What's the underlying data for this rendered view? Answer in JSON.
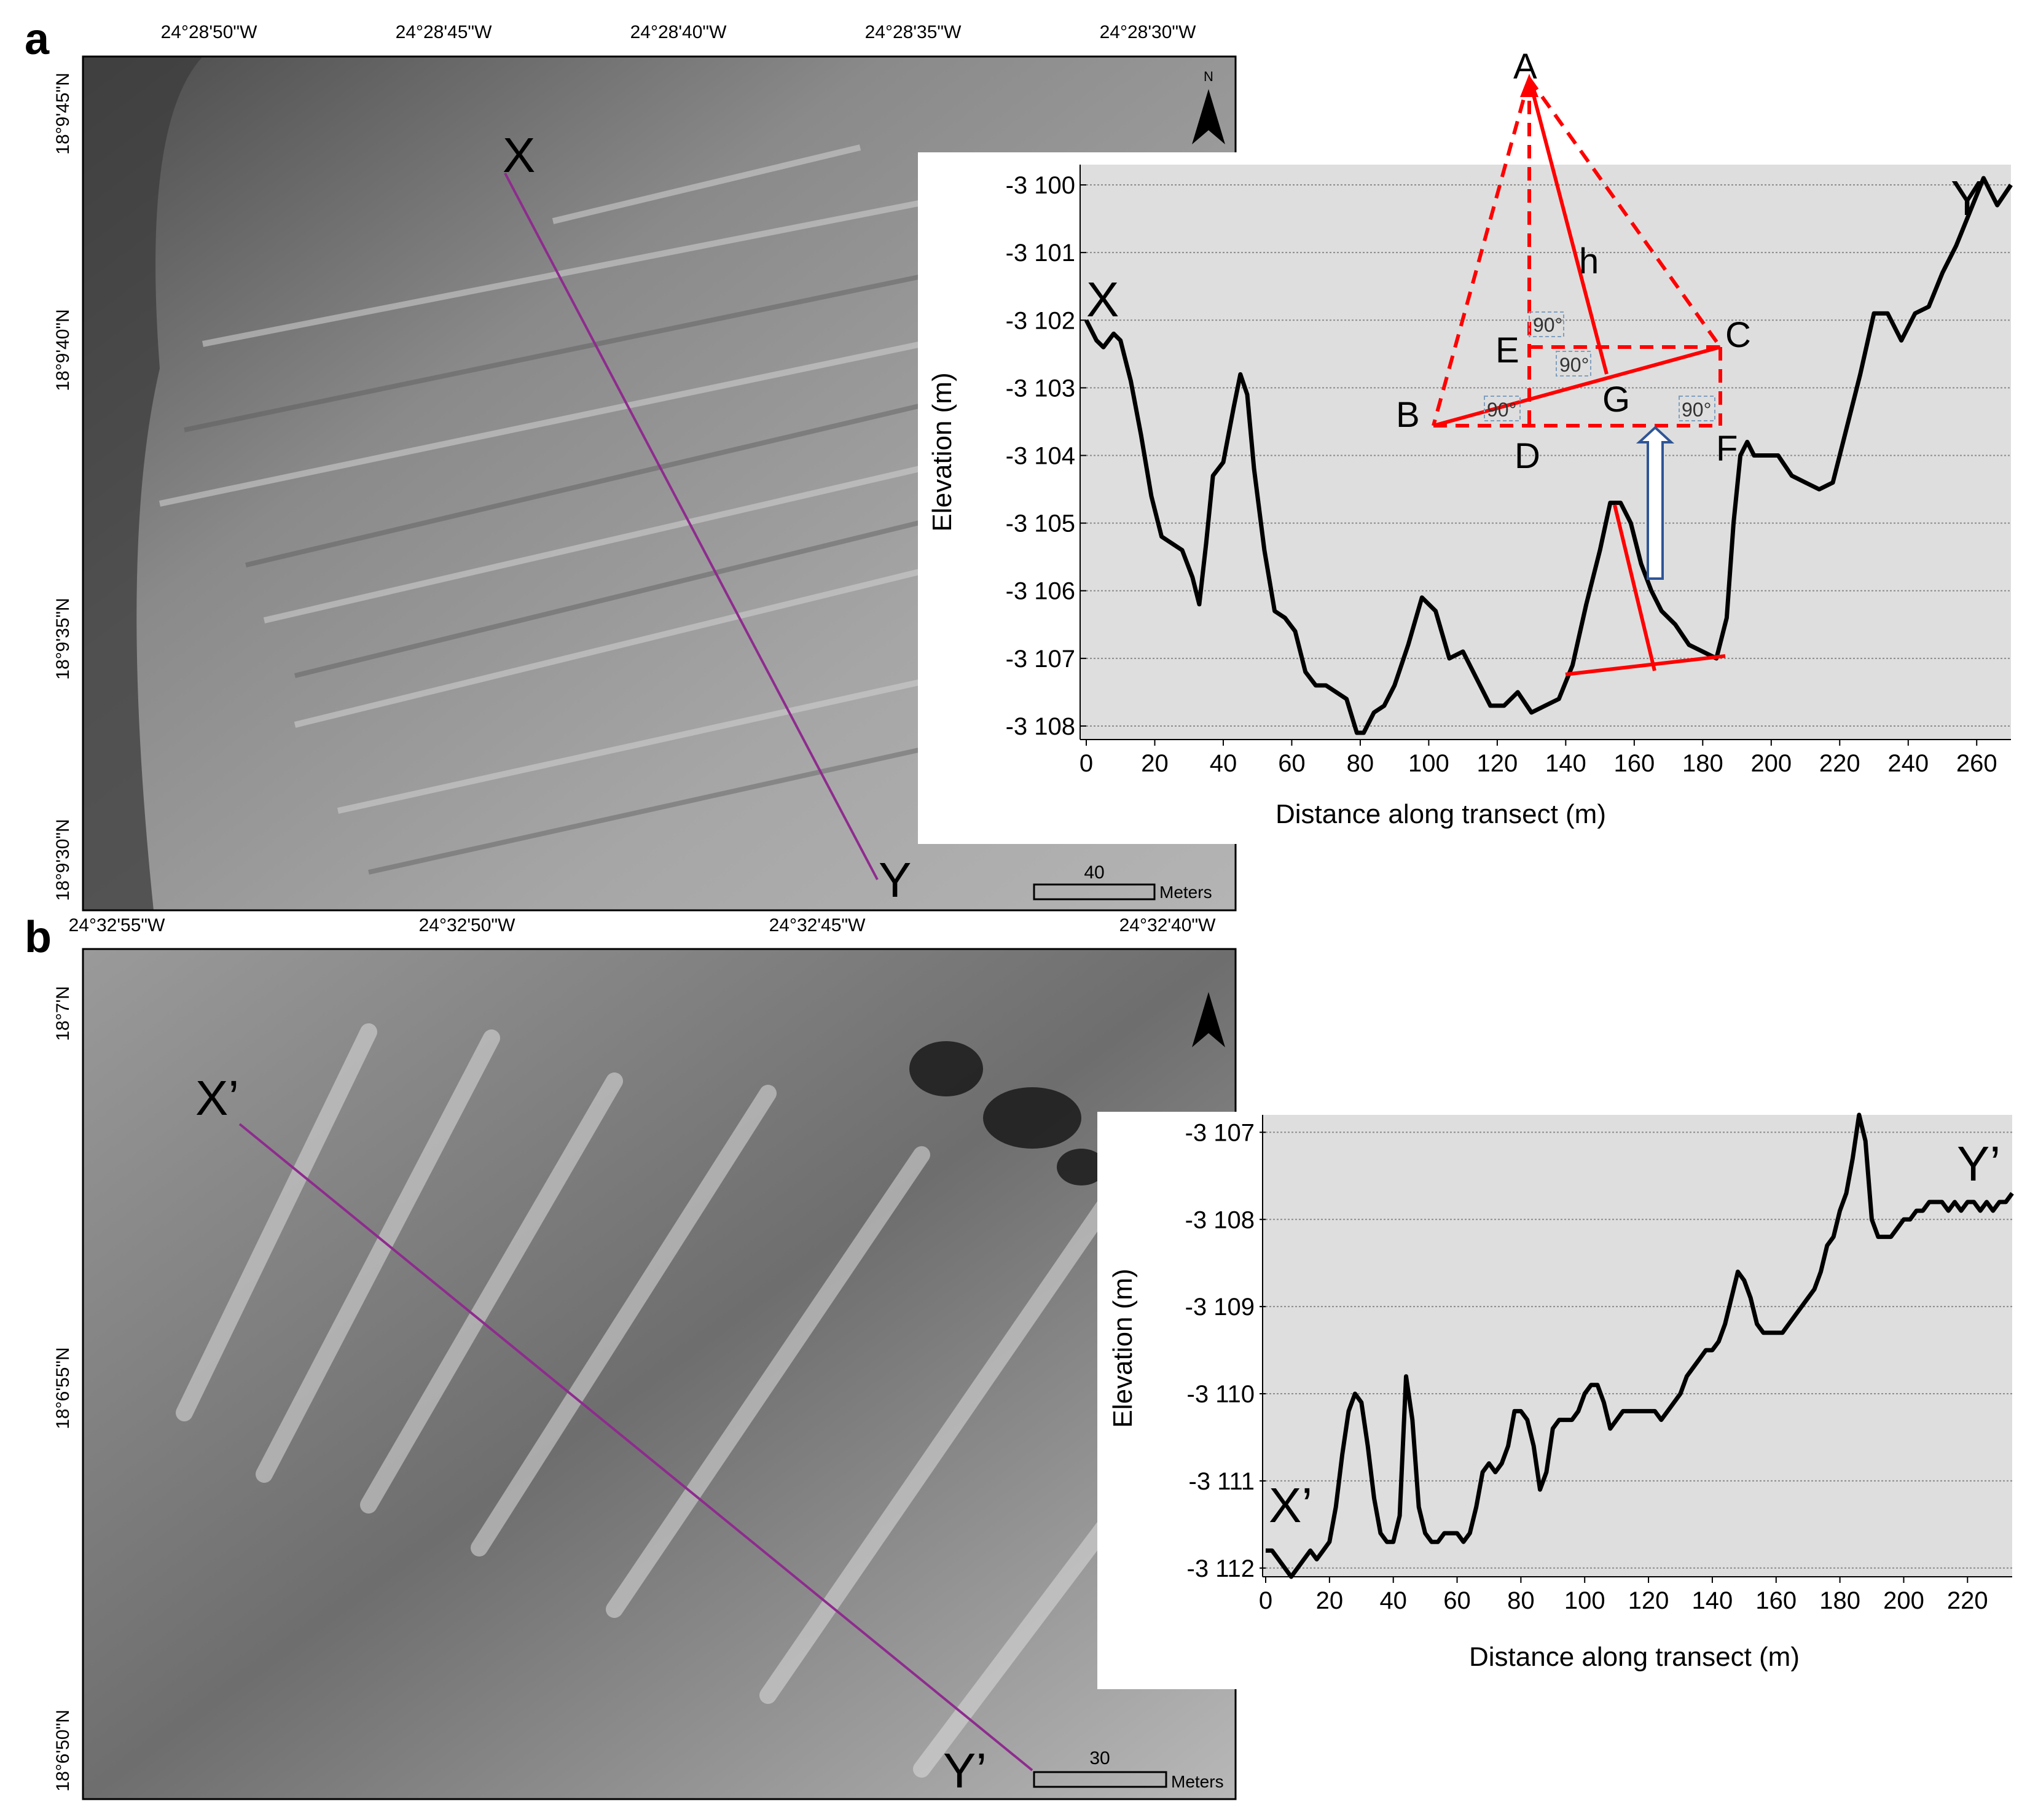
{
  "panels": [
    {
      "letter": "a",
      "lon_ticks": [
        "24°28'50\"W",
        "24°28'45\"W",
        "24°28'40\"W",
        "24°28'35\"W",
        "24°28'30\"W"
      ],
      "lat_ticks": [
        "18°9'45\"N",
        "18°9'40\"N",
        "18°9'35\"N",
        "18°9'30\"N"
      ],
      "transect_start": "X",
      "transect_end": "Y",
      "scale_value": "40",
      "scale_unit": "Meters",
      "north_label": "N"
    },
    {
      "letter": "b",
      "lon_ticks": [
        "24°32'55\"W",
        "24°32'50\"W",
        "24°32'45\"W",
        "24°32'40\"W"
      ],
      "lat_ticks": [
        "18°7'N",
        "18°6'55\"N",
        "18°6'50\"N"
      ],
      "transect_start": "X’",
      "transect_end": "Y’",
      "scale_value": "30",
      "scale_unit": "Meters"
    }
  ],
  "chart_data": [
    {
      "type": "line",
      "title": "",
      "xlabel": "Distance along transect (m)",
      "ylabel": "Elevation (m)",
      "xlim": [
        0,
        270
      ],
      "ylim": [
        -3108.2,
        -3099.7
      ],
      "x_ticks": [
        0,
        20,
        40,
        60,
        80,
        100,
        120,
        140,
        160,
        180,
        200,
        220,
        240,
        260
      ],
      "y_ticks": [
        -3100,
        -3101,
        -3102,
        -3103,
        -3104,
        -3105,
        -3106,
        -3107,
        -3108
      ],
      "y_tick_labels": [
        "-3 100",
        "-3 101",
        "-3 102",
        "-3 103",
        "-3 104",
        "-3 105",
        "-3 106",
        "-3 107",
        "-3 108"
      ],
      "grid": true,
      "start_label": "X",
      "end_label": "Y",
      "series": [
        {
          "x": [
            0,
            3,
            5,
            8,
            10,
            13,
            16,
            19,
            22,
            25,
            28,
            31,
            33,
            35,
            37,
            40,
            43,
            45,
            47,
            49,
            52,
            55,
            58,
            61,
            64,
            67,
            70,
            73,
            76,
            79,
            81,
            84,
            87,
            90,
            94,
            98,
            102,
            106,
            110,
            114,
            118,
            122,
            126,
            130,
            134,
            138,
            142,
            146,
            150,
            153,
            156,
            159,
            162,
            165,
            168,
            172,
            176,
            180,
            184,
            187,
            189,
            191,
            193,
            195,
            198,
            202,
            206,
            210,
            214,
            218,
            222,
            226,
            230,
            234,
            238,
            242,
            246,
            250,
            254,
            258,
            262,
            266,
            270
          ],
          "y": [
            -3102.0,
            -3102.3,
            -3102.4,
            -3102.2,
            -3102.3,
            -3102.9,
            -3103.7,
            -3104.6,
            -3105.2,
            -3105.3,
            -3105.4,
            -3105.8,
            -3106.2,
            -3105.3,
            -3104.3,
            -3104.1,
            -3103.3,
            -3102.8,
            -3103.1,
            -3104.2,
            -3105.4,
            -3106.3,
            -3106.4,
            -3106.6,
            -3107.2,
            -3107.4,
            -3107.4,
            -3107.5,
            -3107.6,
            -3108.1,
            -3108.1,
            -3107.8,
            -3107.7,
            -3107.4,
            -3106.8,
            -3106.1,
            -3106.3,
            -3107.0,
            -3106.9,
            -3107.3,
            -3107.7,
            -3107.7,
            -3107.5,
            -3107.8,
            -3107.7,
            -3107.6,
            -3107.1,
            -3106.2,
            -3105.4,
            -3104.7,
            -3104.7,
            -3105.0,
            -3105.6,
            -3106.0,
            -3106.3,
            -3106.5,
            -3106.8,
            -3106.9,
            -3107.0,
            -3106.4,
            -3105.0,
            -3104.0,
            -3103.8,
            -3104.0,
            -3104.0,
            -3104.0,
            -3104.3,
            -3104.4,
            -3104.5,
            -3104.4,
            -3103.6,
            -3102.8,
            -3101.9,
            -3101.9,
            -3102.3,
            -3101.9,
            -3101.8,
            -3101.3,
            -3100.9,
            -3100.4,
            -3099.9,
            -3100.3,
            -3100.0
          ]
        }
      ],
      "annotations": {
        "points": [
          "A",
          "B",
          "C",
          "D",
          "E",
          "F",
          "G",
          "h"
        ],
        "right_angle_label": "90°"
      }
    },
    {
      "type": "line",
      "title": "",
      "xlabel": "Distance along transect (m)",
      "ylabel": "Elevation (m)",
      "xlim": [
        0,
        234
      ],
      "ylim": [
        -3112.1,
        -3106.8
      ],
      "x_ticks": [
        0,
        20,
        40,
        60,
        80,
        100,
        120,
        140,
        160,
        180,
        200,
        220
      ],
      "y_ticks": [
        -3107,
        -3108,
        -3109,
        -3110,
        -3111,
        -3112
      ],
      "y_tick_labels": [
        "-3 107",
        "-3 108",
        "-3 109",
        "-3 110",
        "-3 111",
        "-3 112"
      ],
      "grid": true,
      "start_label": "X’",
      "end_label": "Y’",
      "series": [
        {
          "x": [
            0,
            2,
            4,
            6,
            8,
            10,
            12,
            14,
            16,
            18,
            20,
            22,
            24,
            26,
            28,
            30,
            32,
            34,
            36,
            38,
            40,
            42,
            44,
            46,
            48,
            50,
            52,
            54,
            56,
            58,
            60,
            62,
            64,
            66,
            68,
            70,
            72,
            74,
            76,
            78,
            80,
            82,
            84,
            86,
            88,
            90,
            92,
            94,
            96,
            98,
            100,
            102,
            104,
            106,
            108,
            110,
            112,
            114,
            116,
            118,
            120,
            122,
            124,
            126,
            128,
            130,
            132,
            134,
            136,
            138,
            140,
            142,
            144,
            146,
            148,
            150,
            152,
            154,
            156,
            158,
            160,
            162,
            164,
            166,
            168,
            170,
            172,
            174,
            176,
            178,
            180,
            182,
            184,
            186,
            188,
            190,
            192,
            194,
            196,
            198,
            200,
            202,
            204,
            206,
            208,
            210,
            212,
            214,
            216,
            218,
            220,
            222,
            224,
            226,
            228,
            230,
            232,
            234
          ],
          "y": [
            -3111.8,
            -3111.8,
            -3111.9,
            -3112.0,
            -3112.1,
            -3112.0,
            -3111.9,
            -3111.8,
            -3111.9,
            -3111.8,
            -3111.7,
            -3111.3,
            -3110.7,
            -3110.2,
            -3110.0,
            -3110.1,
            -3110.6,
            -3111.2,
            -3111.6,
            -3111.7,
            -3111.7,
            -3111.4,
            -3109.8,
            -3110.3,
            -3111.3,
            -3111.6,
            -3111.7,
            -3111.7,
            -3111.6,
            -3111.6,
            -3111.6,
            -3111.7,
            -3111.6,
            -3111.3,
            -3110.9,
            -3110.8,
            -3110.9,
            -3110.8,
            -3110.6,
            -3110.2,
            -3110.2,
            -3110.3,
            -3110.6,
            -3111.1,
            -3110.9,
            -3110.4,
            -3110.3,
            -3110.3,
            -3110.3,
            -3110.2,
            -3110.0,
            -3109.9,
            -3109.9,
            -3110.1,
            -3110.4,
            -3110.3,
            -3110.2,
            -3110.2,
            -3110.2,
            -3110.2,
            -3110.2,
            -3110.2,
            -3110.3,
            -3110.2,
            -3110.1,
            -3110.0,
            -3109.8,
            -3109.7,
            -3109.6,
            -3109.5,
            -3109.5,
            -3109.4,
            -3109.2,
            -3108.9,
            -3108.6,
            -3108.7,
            -3108.9,
            -3109.2,
            -3109.3,
            -3109.3,
            -3109.3,
            -3109.3,
            -3109.2,
            -3109.1,
            -3109.0,
            -3108.9,
            -3108.8,
            -3108.6,
            -3108.3,
            -3108.2,
            -3107.9,
            -3107.7,
            -3107.3,
            -3106.8,
            -3107.1,
            -3108.0,
            -3108.2,
            -3108.2,
            -3108.2,
            -3108.1,
            -3108.0,
            -3108.0,
            -3107.9,
            -3107.9,
            -3107.8,
            -3107.8,
            -3107.8,
            -3107.9,
            -3107.8,
            -3107.9,
            -3107.8,
            -3107.8,
            -3107.9,
            -3107.8,
            -3107.9,
            -3107.8,
            -3107.8,
            -3107.7
          ]
        }
      ]
    }
  ]
}
